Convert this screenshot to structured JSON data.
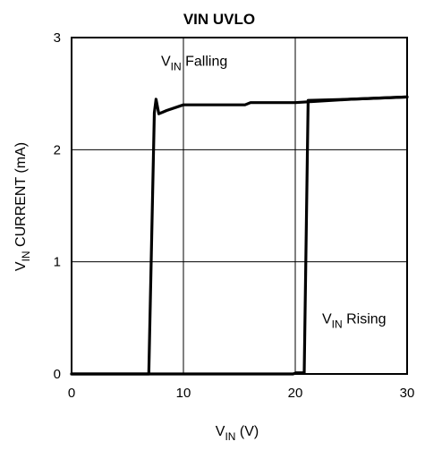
{
  "chart_data": {
    "type": "line",
    "title": "VIN UVLO",
    "xlabel": {
      "main": "V",
      "sub": "IN",
      "rest": " (V)"
    },
    "ylabel": {
      "main": "V",
      "sub": "IN",
      "rest": " CURRENT (mA)"
    },
    "xlim": [
      0,
      30
    ],
    "ylim": [
      0,
      3
    ],
    "xticks": [
      0,
      10,
      20,
      30
    ],
    "yticks": [
      0,
      1,
      2,
      3
    ],
    "grid": true,
    "annotations": [
      {
        "main": "V",
        "sub": "IN",
        "rest": " Falling",
        "x": 8.0,
        "y": 2.75
      },
      {
        "main": "V",
        "sub": "IN",
        "rest": " Rising",
        "x": 22.4,
        "y": 0.45
      }
    ],
    "series": [
      {
        "points": [
          [
            0,
            0
          ],
          [
            6.9,
            0
          ],
          [
            7.4,
            2.33
          ],
          [
            7.55,
            2.45
          ],
          [
            7.8,
            2.32
          ],
          [
            8.5,
            2.35
          ],
          [
            10,
            2.4
          ],
          [
            15.5,
            2.4
          ],
          [
            16,
            2.42
          ],
          [
            20,
            2.42
          ],
          [
            25,
            2.45
          ],
          [
            30,
            2.47
          ]
        ]
      },
      {
        "points": [
          [
            0,
            0
          ],
          [
            19.8,
            0
          ],
          [
            20.1,
            0.01
          ],
          [
            20.8,
            0.01
          ],
          [
            21.15,
            2.44
          ],
          [
            25,
            2.45
          ],
          [
            30,
            2.47
          ]
        ]
      }
    ]
  }
}
